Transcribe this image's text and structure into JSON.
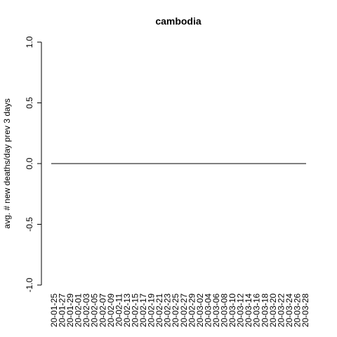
{
  "chart_data": {
    "type": "line",
    "title": "cambodia",
    "xlabel": "",
    "ylabel": "avg. # new deaths/day prev  3  days",
    "ylim": [
      -1.0,
      1.0
    ],
    "y_ticks": [
      "-1.0",
      "-0.5",
      "0.0",
      "0.5",
      "1.0"
    ],
    "x_tick_labels": [
      "20-01-25",
      "20-01-27",
      "20-01-29",
      "20-02-01",
      "20-02-03",
      "20-02-05",
      "20-02-07",
      "20-02-09",
      "20-02-11",
      "20-02-13",
      "20-02-15",
      "20-02-17",
      "20-02-19",
      "20-02-21",
      "20-02-23",
      "20-02-25",
      "20-02-27",
      "20-02-29",
      "20-03-02",
      "20-03-04",
      "20-03-06",
      "20-03-08",
      "20-03-10",
      "20-03-12",
      "20-03-14",
      "20-03-16",
      "20-03-18",
      "20-03-20",
      "20-03-22",
      "20-03-24",
      "20-03-26",
      "20-03-28"
    ],
    "series": [
      {
        "x": [
          "2020-01-25",
          "2020-03-28"
        ],
        "y": [
          0,
          0
        ],
        "color": "#000000"
      }
    ],
    "grid": false,
    "legend": "none"
  }
}
